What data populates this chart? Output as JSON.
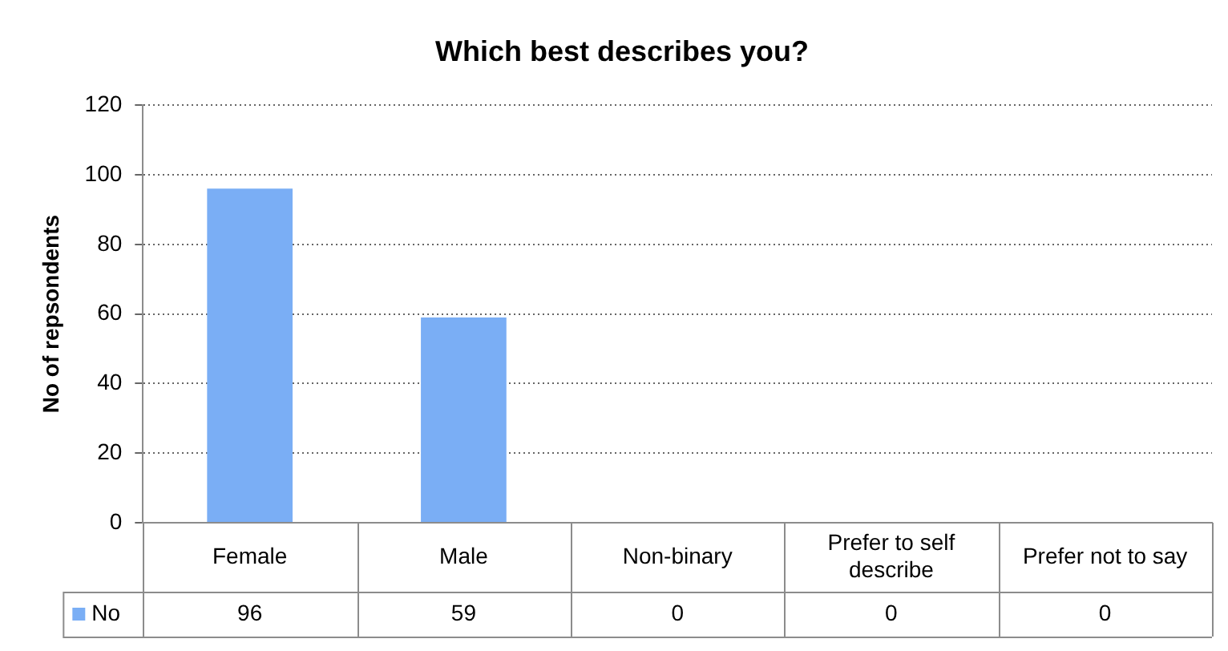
{
  "chart_data": {
    "type": "bar",
    "title": "Which best describes you?",
    "ylabel": "No of repsondents",
    "categories": [
      "Female",
      "Male",
      "Non-binary",
      "Prefer to self describe",
      "Prefer not to say"
    ],
    "series": [
      {
        "name": "No",
        "color": "#7aaef5",
        "values": [
          96,
          59,
          0,
          0,
          0
        ]
      }
    ],
    "ylim": [
      0,
      120
    ],
    "yticks": [
      0,
      20,
      40,
      60,
      80,
      100,
      120
    ],
    "grid": "y",
    "legend": "bottom left",
    "data_labels": true
  }
}
